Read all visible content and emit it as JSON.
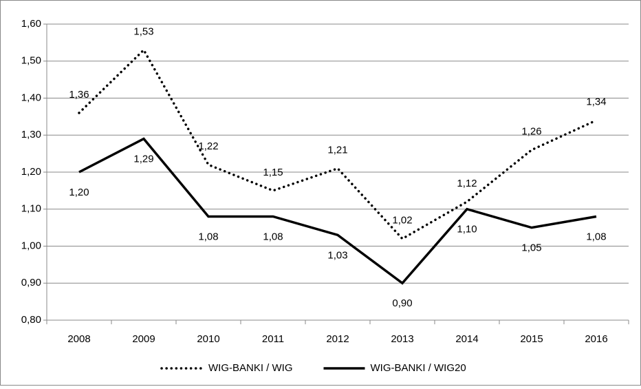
{
  "chart_data": {
    "type": "line",
    "categories": [
      "2008",
      "2009",
      "2010",
      "2011",
      "2012",
      "2013",
      "2014",
      "2015",
      "2016"
    ],
    "series": [
      {
        "name": "WIG-BANKI / WIG",
        "color": "#000000",
        "style": "dotted",
        "values": [
          1.36,
          1.53,
          1.22,
          1.15,
          1.21,
          1.02,
          1.12,
          1.26,
          1.34
        ],
        "value_labels": [
          "1,36",
          "1,53",
          "1,22",
          "1,15",
          "1,21",
          "1,02",
          "1,12",
          "1,26",
          "1,34"
        ]
      },
      {
        "name": "WIG-BANKI / WIG20",
        "color": "#000000",
        "style": "solid",
        "values": [
          1.2,
          1.29,
          1.08,
          1.08,
          1.03,
          0.9,
          1.1,
          1.05,
          1.08
        ],
        "value_labels": [
          "1,20",
          "1,29",
          "1,08",
          "1,08",
          "1,03",
          "0,90",
          "1,10",
          "1,05",
          "1,08"
        ]
      }
    ],
    "ylim": [
      0.8,
      1.6
    ],
    "yticks": [
      {
        "value": 0.8,
        "label": "0,80"
      },
      {
        "value": 0.9,
        "label": "0,90"
      },
      {
        "value": 1.0,
        "label": "1,00"
      },
      {
        "value": 1.1,
        "label": "1,10"
      },
      {
        "value": 1.2,
        "label": "1,20"
      },
      {
        "value": 1.3,
        "label": "1,30"
      },
      {
        "value": 1.4,
        "label": "1,40"
      },
      {
        "value": 1.5,
        "label": "1,50"
      },
      {
        "value": 1.6,
        "label": "1,60"
      }
    ],
    "grid": true,
    "legend": "bottom"
  }
}
